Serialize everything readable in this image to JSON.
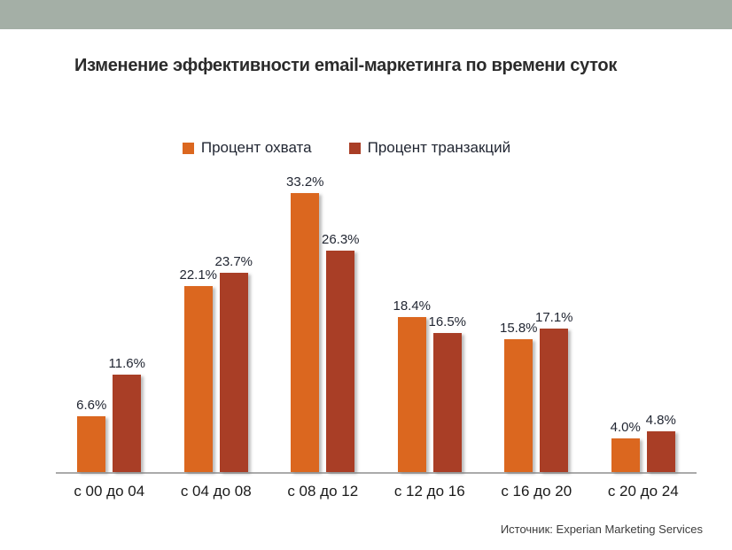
{
  "page": {
    "title": "Изменение эффективности email-маркетинга по времени суток",
    "source": "Источник: Experian Marketing Services"
  },
  "colors": {
    "top_band": "#A4AFA6",
    "series1": "#DB671F",
    "series2": "#A93E26",
    "axis_line": "#ABABAB",
    "data_label": "#222733"
  },
  "chart_data": {
    "type": "bar",
    "title": "Изменение эффективности email-маркетинга по времени суток",
    "categories": [
      "с 00 до 04",
      "с 04 до 08",
      "с 08 до 12",
      "с 12 до 16",
      "с 16 до 20",
      "с 20 до 24"
    ],
    "series": [
      {
        "name": "Процент охвата",
        "color": "#DB671F",
        "values": [
          6.6,
          22.1,
          33.2,
          18.4,
          15.8,
          4.0
        ]
      },
      {
        "name": "Процент транзакций",
        "color": "#A93E26",
        "values": [
          11.6,
          23.7,
          26.3,
          16.5,
          17.1,
          4.8
        ]
      }
    ],
    "value_suffix": "%",
    "xlabel": "",
    "ylabel": "",
    "ylim": [
      0,
      35.8
    ],
    "grid": false,
    "legend_position": "top",
    "data_labels": true,
    "source_note": "Источник: Experian Marketing Services"
  }
}
